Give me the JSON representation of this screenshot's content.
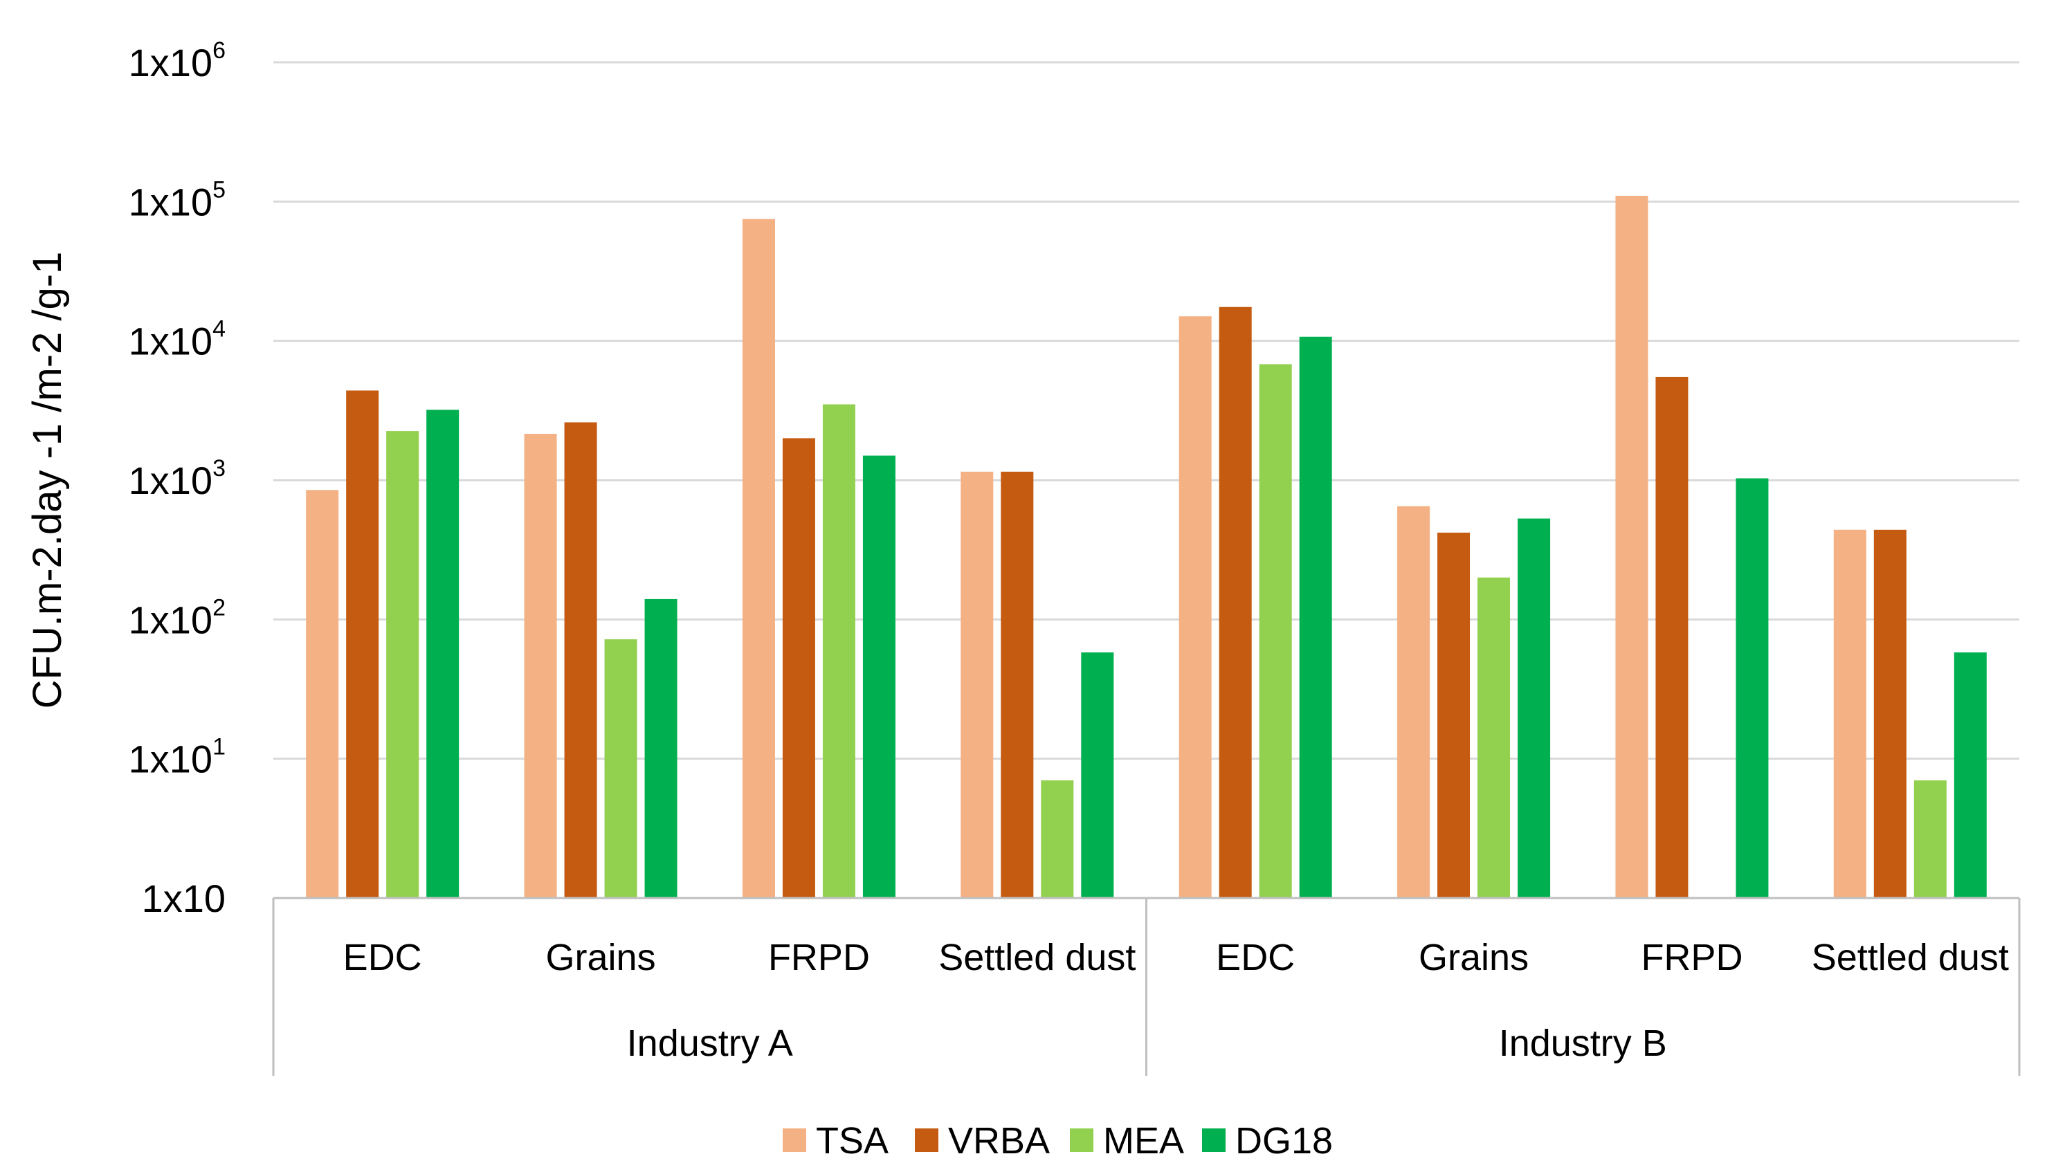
{
  "chart_data": {
    "type": "bar",
    "scale": "log",
    "title": "",
    "ylabel": "CFU.m-2.day -1 /m-2 /g-1",
    "xlabel": "",
    "ylim": [
      1,
      1000000
    ],
    "y_ticks": [
      {
        "value": 1000000,
        "base": "1x10",
        "exp": "6"
      },
      {
        "value": 100000,
        "base": "1x10",
        "exp": "5"
      },
      {
        "value": 10000,
        "base": "1x10",
        "exp": "4"
      },
      {
        "value": 1000,
        "base": "1x10",
        "exp": "3"
      },
      {
        "value": 100,
        "base": "1x10",
        "exp": "2"
      },
      {
        "value": 10,
        "base": "1x10",
        "exp": "1"
      },
      {
        "value": 1,
        "base": "1x10",
        "exp": ""
      }
    ],
    "grid": true,
    "groups": [
      {
        "name": "Industry A",
        "categories": [
          "EDC",
          "Grains",
          "FRPD",
          "Settled dust"
        ]
      },
      {
        "name": "Industry B",
        "categories": [
          "EDC",
          "Grains",
          "FRPD",
          "Settled dust"
        ]
      }
    ],
    "categories": [
      "EDC",
      "Grains",
      "FRPD",
      "Settled dust",
      "EDC",
      "Grains",
      "FRPD",
      "Settled dust"
    ],
    "series": [
      {
        "name": "TSA",
        "color": "#F4B183",
        "values": [
          850,
          2150,
          75000,
          1150,
          15000,
          650,
          110000,
          440
        ]
      },
      {
        "name": "VRBA",
        "color": "#C55A11",
        "values": [
          4400,
          2600,
          2000,
          1150,
          17500,
          420,
          5500,
          440
        ]
      },
      {
        "name": "MEA",
        "color": "#92D050",
        "values": [
          2250,
          72,
          3500,
          null,
          6800,
          200,
          null,
          7
        ]
      },
      {
        "name": "DG18",
        "color": "#00B050",
        "values": [
          3200,
          140,
          1500,
          58,
          10700,
          530,
          1030,
          58
        ]
      }
    ],
    "series_extra": {
      "MEA_settled_dust_A": 7
    },
    "legend": {
      "position": "bottom",
      "items": [
        "TSA",
        "VRBA",
        "MEA",
        "DG18"
      ]
    }
  }
}
